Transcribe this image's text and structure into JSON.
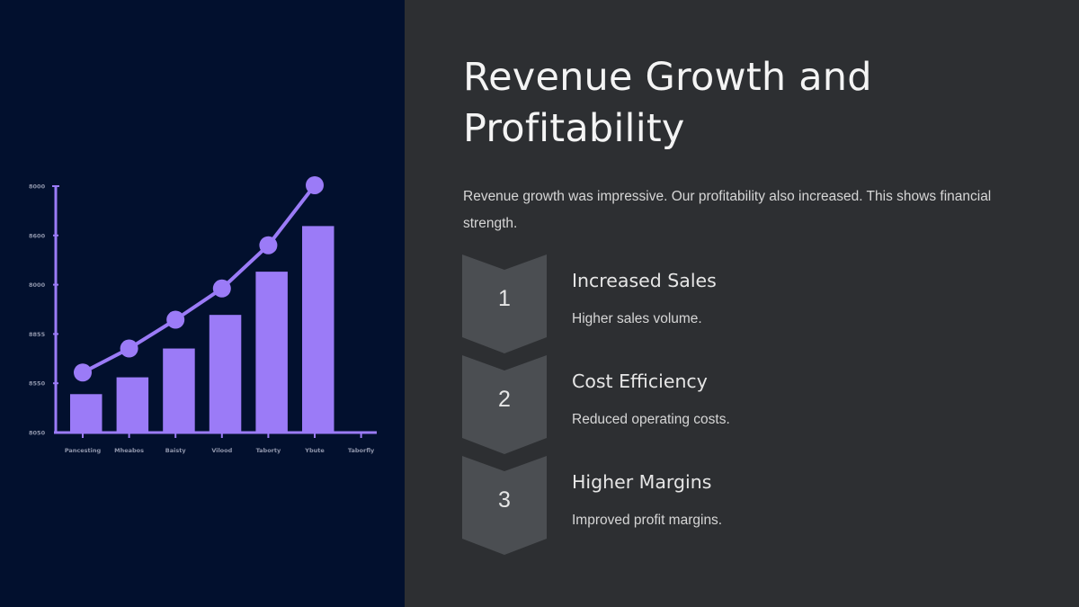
{
  "slide": {
    "title": "Revenue Growth and Profitability",
    "intro": "Revenue growth was impressive. Our profitability also increased. This shows financial strength.",
    "steps": [
      {
        "number": "1",
        "title": "Increased Sales",
        "description": "Higher sales volume."
      },
      {
        "number": "2",
        "title": "Cost Efficiency",
        "description": "Reduced operating costs."
      },
      {
        "number": "3",
        "title": "Higher Margins",
        "description": "Improved profit margins."
      }
    ]
  },
  "colors": {
    "left_background": "#02102e",
    "right_background": "#2d2f32",
    "chart_accent": "#9b7bf7",
    "chevron_fill": "#4b4e52",
    "title_text": "#f4f4f4",
    "body_text": "#d6d6d6"
  },
  "chart_data": {
    "type": "bar",
    "overlay": "line",
    "title": "",
    "xlabel": "",
    "ylabel": "",
    "y_tick_labels": [
      "8000",
      "8600",
      "8000",
      "8855",
      "8550",
      "8050"
    ],
    "categories": [
      "Pancesting",
      "Mheabos",
      "Baisty",
      "Vilood",
      "Taborty",
      "Ybute",
      "Taborfly"
    ],
    "series": [
      {
        "name": "bars",
        "type": "bar",
        "values": [
          16,
          23,
          35,
          49,
          67,
          86,
          null
        ]
      },
      {
        "name": "line",
        "type": "line",
        "values": [
          25,
          35,
          47,
          60,
          78,
          103,
          null
        ]
      }
    ],
    "ylim": [
      0,
      100
    ],
    "grid": false,
    "legend": "none"
  }
}
